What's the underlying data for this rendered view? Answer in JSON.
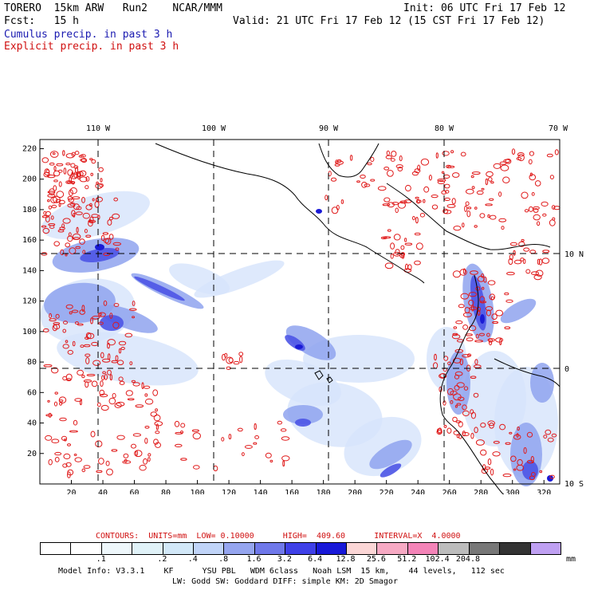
{
  "header": {
    "model": "TORERO  15km ARW   Run2    NCAR/MMM",
    "init": "Init: 06 UTC Fri 17 Feb 12",
    "fcst": "Fcst:   15 h",
    "valid": "Valid: 21 UTC Fri 17 Feb 12 (15 CST Fri 17 Feb 12)",
    "cumulus": "Cumulus precip. in past 3 h",
    "explicit": "Explicit precip. in past 3 h"
  },
  "map": {
    "top_lon_labels": [
      "110 W",
      "100 W",
      "90 W",
      "80 W",
      "70 W"
    ],
    "right_lat_labels": [
      "10 N",
      "0",
      "10 S"
    ],
    "x_ticks": [
      "20",
      "40",
      "60",
      "80",
      "100",
      "120",
      "140",
      "160",
      "180",
      "200",
      "220",
      "240",
      "260",
      "280",
      "300",
      "320"
    ],
    "y_ticks": [
      "220",
      "200",
      "180",
      "160",
      "140",
      "120",
      "100",
      "80",
      "60",
      "40",
      "20"
    ],
    "colors": {
      "cumulus_light": "#d6e4fb",
      "cumulus_mid": "#8fa3ee",
      "cumulus_strong": "#4d55e6",
      "cumulus_heavy": "#1a1ad6",
      "explicit": "#e01a1a",
      "coast": "#000000"
    }
  },
  "contours": {
    "text": "CONTOURS:  UNITS=mm  LOW= 0.10000      HIGH=  409.60      INTERVAL=X  4.0000"
  },
  "legend": {
    "colors": [
      "#ffffff",
      "#ffffff",
      "#eef7fb",
      "#e0f2f8",
      "#d2e8f8",
      "#c0d4f8",
      "#95a5ef",
      "#6f78ea",
      "#3f40e8",
      "#1818d8",
      "#fbd6d6",
      "#f7aac4",
      "#f484b8",
      "#bcbcbc",
      "#777777",
      "#333333",
      "#bfa0f2"
    ],
    "labels": [
      ".1",
      ".2",
      ".4",
      ".8",
      "1.6",
      "3.2",
      "6.4",
      "12.8",
      "25.6",
      "51.2",
      "102.4",
      "204.8"
    ],
    "unit": "mm"
  },
  "model_info": {
    "line1": "Model Info: V3.3.1    KF      YSU PBL   WDM 6class   Noah LSM  15 km,    44 levels,   112 sec",
    "line2": "LW: Godd SW: Goddard DIFF: simple KM: 2D Smagor"
  }
}
